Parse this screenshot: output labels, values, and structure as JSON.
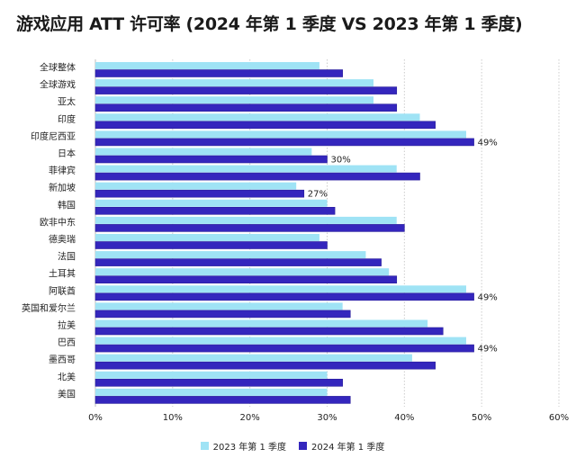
{
  "chart_data": {
    "type": "bar",
    "orientation": "horizontal",
    "title": "游戏应用 ATT 许可率 (2024 年第 1 季度 VS 2023 年第 1 季度)",
    "categories": [
      "全球整体",
      "全球游戏",
      "亚太",
      "印度",
      "印度尼西亚",
      "日本",
      "菲律宾",
      "新加坡",
      "韩国",
      "欧非中东",
      "德奥瑞",
      "法国",
      "土耳其",
      "阿联酋",
      "英国和爱尔兰",
      "拉美",
      "巴西",
      "墨西哥",
      "北美",
      "美国"
    ],
    "series": [
      {
        "name": "2023 年第 1 季度",
        "color": "#9fe3f5",
        "values": [
          29,
          36,
          36,
          42,
          48,
          28,
          39,
          26,
          30,
          39,
          29,
          35,
          38,
          48,
          32,
          43,
          48,
          41,
          30,
          30
        ]
      },
      {
        "name": "2024 年第 1 季度",
        "color": "#3426bd",
        "values": [
          32,
          39,
          39,
          44,
          49,
          30,
          42,
          27,
          31,
          40,
          30,
          37,
          39,
          49,
          33,
          45,
          49,
          44,
          32,
          33
        ]
      }
    ],
    "data_labels": [
      {
        "category": "印度尼西亚",
        "text": "49%"
      },
      {
        "category": "日本",
        "text": "30%"
      },
      {
        "category": "新加坡",
        "text": "27%"
      },
      {
        "category": "阿联酋",
        "text": "49%"
      },
      {
        "category": "巴西",
        "text": "49%"
      }
    ],
    "xlim": [
      0,
      60
    ],
    "xticks": [
      "0%",
      "10%",
      "20%",
      "30%",
      "40%",
      "50%",
      "60%"
    ],
    "grid": "vertical dotted",
    "legend": "bottom"
  }
}
